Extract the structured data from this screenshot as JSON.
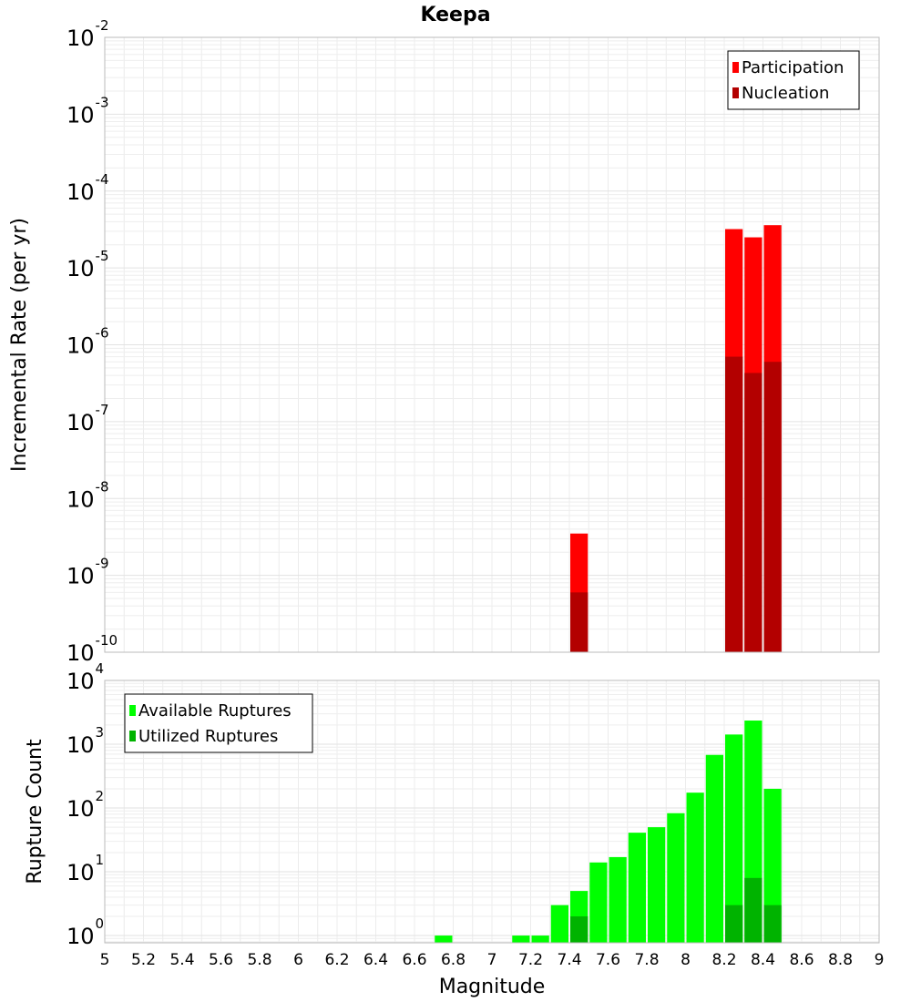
{
  "chart_data": {
    "title": "Keepa",
    "xlabel": "Magnitude",
    "xlim": [
      5,
      9
    ],
    "x_ticks": [
      "5",
      "5.2",
      "5.4",
      "5.6",
      "5.8",
      "6",
      "6.2",
      "6.4",
      "6.6",
      "6.8",
      "7",
      "7.2",
      "7.4",
      "7.6",
      "7.8",
      "8",
      "8.2",
      "8.4",
      "8.6",
      "8.8",
      "9"
    ],
    "bin_width": 0.1,
    "panels": [
      {
        "type": "bar",
        "ylabel": "Incremental Rate (per yr)",
        "yscale": "log",
        "ylim": [
          1e-10,
          0.01
        ],
        "y_tick_base": "10",
        "y_tick_exponents": [
          "-10",
          "-9",
          "-8",
          "-7",
          "-6",
          "-5",
          "-4",
          "-3",
          "-2"
        ],
        "grid": true,
        "legend_position": "top-right",
        "series": [
          {
            "name": "Participation",
            "color": "#ff0000",
            "x": [
              7.45,
              8.25,
              8.35,
              8.45
            ],
            "values": [
              3.5e-09,
              3.2e-05,
              2.5e-05,
              3.6e-05
            ]
          },
          {
            "name": "Nucleation",
            "color": "#b30000",
            "x": [
              7.45,
              8.25,
              8.35,
              8.45
            ],
            "values": [
              6e-10,
              7e-07,
              4.3e-07,
              6e-07
            ]
          }
        ]
      },
      {
        "type": "bar",
        "ylabel": "Rupture Count",
        "yscale": "log",
        "ylim": [
          0.77,
          10000
        ],
        "y_tick_base": "10",
        "y_tick_exponents": [
          "0",
          "1",
          "2",
          "3",
          "4"
        ],
        "grid": true,
        "legend_position": "top-left",
        "series": [
          {
            "name": "Available Ruptures",
            "color": "#00ff00",
            "x": [
              6.75,
              7.15,
              7.25,
              7.35,
              7.45,
              7.55,
              7.65,
              7.75,
              7.85,
              7.95,
              8.05,
              8.15,
              8.25,
              8.35,
              8.45
            ],
            "values": [
              1,
              1,
              1,
              3,
              5,
              14,
              17,
              41,
              50,
              83,
              174,
              680,
              1420,
              2350,
              200
            ]
          },
          {
            "name": "Utilized Ruptures",
            "color": "#00b300",
            "x": [
              7.45,
              8.25,
              8.35,
              8.45
            ],
            "values": [
              2,
              3,
              8,
              3
            ]
          }
        ]
      }
    ]
  }
}
